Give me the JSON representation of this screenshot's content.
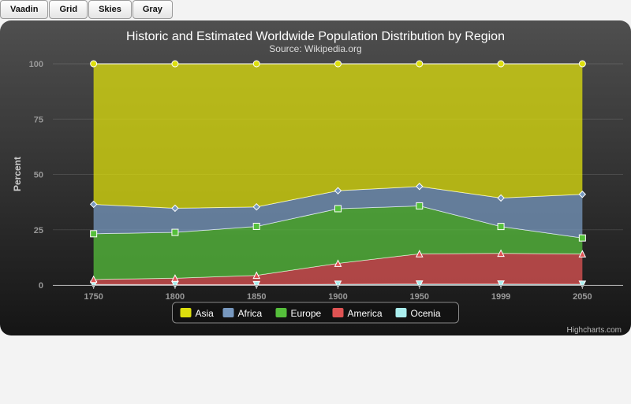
{
  "theme_buttons": [
    "Vaadin",
    "Grid",
    "Skies",
    "Gray"
  ],
  "credits": "Highcharts.com",
  "chart_data": {
    "type": "area",
    "stacking": "percent",
    "title": "Historic and Estimated Worldwide Population Distribution by Region",
    "subtitle": "Source: Wikipedia.org",
    "ylabel": "Percent",
    "xlabel": "",
    "ylim": [
      0,
      100
    ],
    "yticks": [
      0,
      25,
      50,
      75,
      100
    ],
    "categories": [
      "1750",
      "1800",
      "1850",
      "1900",
      "1950",
      "1999",
      "2050"
    ],
    "grid": true,
    "legend_position": "bottom-center",
    "series": [
      {
        "name": "Asia",
        "color": "#dddf0d",
        "marker": "circle",
        "values": [
          63.5,
          65.2,
          64.6,
          57.3,
          55.6,
          60.7,
          59.0
        ]
      },
      {
        "name": "Africa",
        "color": "#7798bf",
        "marker": "diamond",
        "values": [
          13.3,
          10.9,
          8.8,
          8.1,
          8.8,
          12.9,
          19.7
        ]
      },
      {
        "name": "Europe",
        "color": "#55bf3b",
        "marker": "square",
        "values": [
          20.6,
          20.7,
          22.1,
          24.7,
          21.7,
          12.1,
          7.2
        ]
      },
      {
        "name": "America",
        "color": "#df5353",
        "marker": "triangle",
        "values": [
          2.3,
          2.9,
          4.2,
          9.4,
          13.7,
          13.9,
          13.7
        ]
      },
      {
        "name": "Ocenia",
        "color": "#aaeeee",
        "marker": "triangle-down",
        "values": [
          0.3,
          0.2,
          0.2,
          0.4,
          0.5,
          0.5,
          0.4
        ]
      }
    ]
  }
}
